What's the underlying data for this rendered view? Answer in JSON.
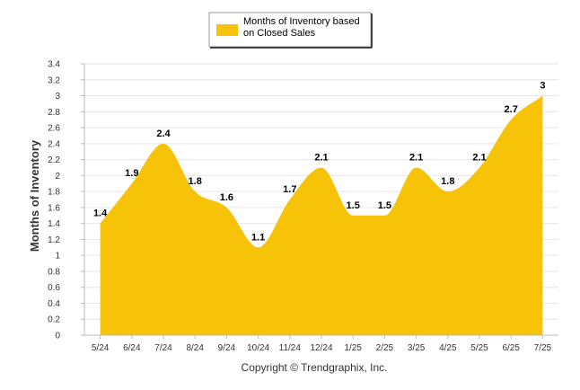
{
  "chart_data": {
    "type": "area",
    "categories": [
      "5/24",
      "6/24",
      "7/24",
      "8/24",
      "9/24",
      "10/24",
      "11/24",
      "12/24",
      "1/25",
      "2/25",
      "3/25",
      "4/25",
      "5/25",
      "6/25",
      "7/25"
    ],
    "series": [
      {
        "name": "Months of Inventory based on Closed Sales",
        "values": [
          1.4,
          1.9,
          2.4,
          1.8,
          1.6,
          1.1,
          1.7,
          2.1,
          1.5,
          1.5,
          2.1,
          1.8,
          2.1,
          2.7,
          3
        ],
        "color": "#F7C308"
      }
    ],
    "data_labels": [
      "1.4",
      "1.9",
      "2.4",
      "1.8",
      "1.6",
      "1.1",
      "1.7",
      "2.1",
      "1.5",
      "1.5",
      "2.1",
      "1.8",
      "2.1",
      "2.7",
      "3"
    ],
    "ylabel": "Months of Inventory",
    "xlabel": "",
    "ylim": [
      0,
      3.4
    ],
    "yticks": [
      "0",
      "0.2",
      "0.4",
      "0.6",
      "0.8",
      "1",
      "1.2",
      "1.4",
      "1.6",
      "1.8",
      "2",
      "2.2",
      "2.4",
      "2.6",
      "2.8",
      "3",
      "3.2",
      "3.4"
    ],
    "grid": true,
    "legend_position": "top-center",
    "legend_lines": [
      "Months of Inventory based",
      "on Closed Sales"
    ]
  },
  "footer": {
    "copyright": "Copyright © Trendgraphix, Inc."
  },
  "colors": {
    "area": "#F7C308",
    "grid": "#E6E6E6",
    "axis": "#BBBBBB"
  }
}
